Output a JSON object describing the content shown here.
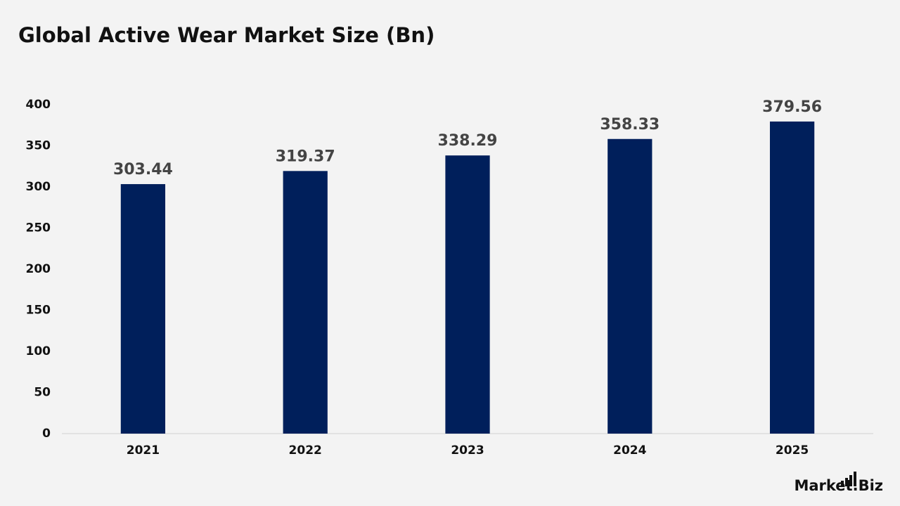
{
  "chart_data": {
    "type": "bar",
    "title": "Global Active Wear Market Size (Bn)",
    "categories": [
      "2021",
      "2022",
      "2023",
      "2024",
      "2025"
    ],
    "values": [
      303.44,
      319.37,
      338.29,
      358.33,
      379.56
    ],
    "color": "#001f5b",
    "ylim": [
      0,
      400
    ],
    "yticks": [
      0,
      50,
      100,
      150,
      200,
      250,
      300,
      350,
      400
    ],
    "grid": false
  },
  "logo": "Market.Biz"
}
